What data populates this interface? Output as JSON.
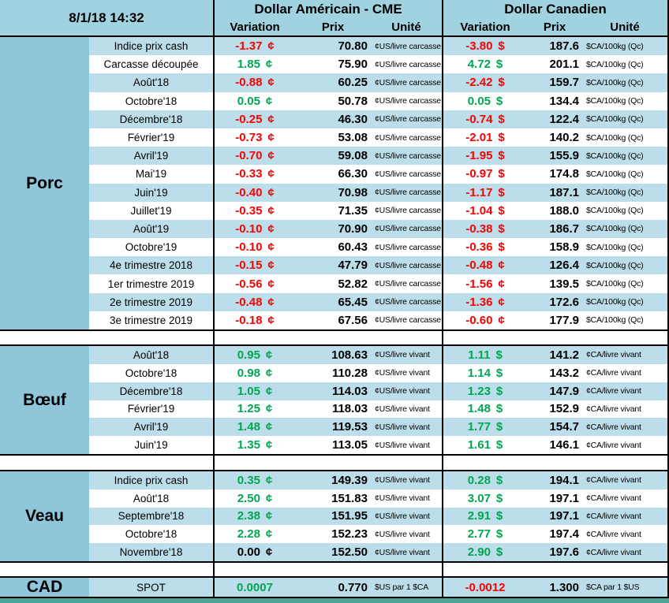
{
  "meta": {
    "timestamp": "8/1/18 14:32"
  },
  "header": {
    "us_title": "Dollar Américain - CME",
    "ca_title": "Dollar Canadien",
    "variation": "Variation",
    "prix": "Prix",
    "unite": "Unité"
  },
  "colors": {
    "positive": "#00A651",
    "negative": "#FF0000",
    "zero": "#000000",
    "header_blue": "#A0D2E0",
    "category_blue": "#8FC6DA",
    "row_blue": "#BCDEEA",
    "bottom_teal": "#4EA39A"
  },
  "sections": [
    {
      "category": "Porc",
      "us_sym": "¢",
      "ca_sym": "$",
      "us_unit": "¢US/livre carcasse",
      "ca_unit": "$CA/100kg (Qc)",
      "rows": [
        {
          "label": "Indice prix cash",
          "us_var": "-1.37",
          "us_prix": "70.80",
          "ca_var": "-3.80",
          "ca_prix": "187.6"
        },
        {
          "label": "Carcasse découpée",
          "us_var": "1.85",
          "us_prix": "75.90",
          "ca_var": "4.72",
          "ca_prix": "201.1"
        },
        {
          "label": "Août'18",
          "us_var": "-0.88",
          "us_prix": "60.25",
          "ca_var": "-2.42",
          "ca_prix": "159.7"
        },
        {
          "label": "Octobre'18",
          "us_var": "0.05",
          "us_prix": "50.78",
          "ca_var": "0.05",
          "ca_prix": "134.4"
        },
        {
          "label": "Décembre'18",
          "us_var": "-0.25",
          "us_prix": "46.30",
          "ca_var": "-0.74",
          "ca_prix": "122.4"
        },
        {
          "label": "Février'19",
          "us_var": "-0.73",
          "us_prix": "53.08",
          "ca_var": "-2.01",
          "ca_prix": "140.2"
        },
        {
          "label": "Avril'19",
          "us_var": "-0.70",
          "us_prix": "59.08",
          "ca_var": "-1.95",
          "ca_prix": "155.9"
        },
        {
          "label": "Mai'19",
          "us_var": "-0.33",
          "us_prix": "66.30",
          "ca_var": "-0.97",
          "ca_prix": "174.8"
        },
        {
          "label": "Juin'19",
          "us_var": "-0.40",
          "us_prix": "70.98",
          "ca_var": "-1.17",
          "ca_prix": "187.1"
        },
        {
          "label": "Juillet'19",
          "us_var": "-0.35",
          "us_prix": "71.35",
          "ca_var": "-1.04",
          "ca_prix": "188.0"
        },
        {
          "label": "Août'19",
          "us_var": "-0.10",
          "us_prix": "70.90",
          "ca_var": "-0.38",
          "ca_prix": "186.7"
        },
        {
          "label": "Octobre'19",
          "us_var": "-0.10",
          "us_prix": "60.43",
          "ca_var": "-0.36",
          "ca_prix": "158.9"
        },
        {
          "label": "4e trimestre 2018",
          "us_var": "-0.15",
          "us_prix": "47.79",
          "ca_var": "-0.48",
          "ca_prix": "126.4",
          "ca_sym": "¢"
        },
        {
          "label": "1er trimestre 2019",
          "us_var": "-0.56",
          "us_prix": "52.82",
          "ca_var": "-1.56",
          "ca_prix": "139.5",
          "ca_sym": "¢"
        },
        {
          "label": "2e trimestre 2019",
          "us_var": "-0.48",
          "us_prix": "65.45",
          "ca_var": "-1.36",
          "ca_prix": "172.6",
          "ca_sym": "¢"
        },
        {
          "label": "3e trimestre 2019",
          "us_var": "-0.18",
          "us_prix": "67.56",
          "ca_var": "-0.60",
          "ca_prix": "177.9",
          "ca_sym": "¢"
        }
      ]
    },
    {
      "category": "Bœuf",
      "us_sym": "¢",
      "ca_sym": "$",
      "us_unit": "¢US/livre vivant",
      "ca_unit": "¢CA/livre vivant",
      "rows": [
        {
          "label": "Août'18",
          "us_var": "0.95",
          "us_prix": "108.63",
          "ca_var": "1.11",
          "ca_prix": "141.2"
        },
        {
          "label": "Octobre'18",
          "us_var": "0.98",
          "us_prix": "110.28",
          "ca_var": "1.14",
          "ca_prix": "143.2"
        },
        {
          "label": "Décembre'18",
          "us_var": "1.05",
          "us_prix": "114.03",
          "ca_var": "1.23",
          "ca_prix": "147.9"
        },
        {
          "label": "Février'19",
          "us_var": "1.25",
          "us_prix": "118.03",
          "ca_var": "1.48",
          "ca_prix": "152.9"
        },
        {
          "label": "Avril'19",
          "us_var": "1.48",
          "us_prix": "119.53",
          "ca_var": "1.77",
          "ca_prix": "154.7"
        },
        {
          "label": "Juin'19",
          "us_var": "1.35",
          "us_prix": "113.05",
          "ca_var": "1.61",
          "ca_prix": "146.1"
        }
      ]
    },
    {
      "category": "Veau",
      "us_sym": "¢",
      "ca_sym": "$",
      "us_unit": "¢US/livre vivant",
      "ca_unit": "¢CA/livre vivant",
      "rows": [
        {
          "label": "Indice prix cash",
          "us_var": "0.35",
          "us_prix": "149.39",
          "ca_var": "0.28",
          "ca_prix": "194.1"
        },
        {
          "label": "Août'18",
          "us_var": "2.50",
          "us_prix": "151.83",
          "ca_var": "3.07",
          "ca_prix": "197.1"
        },
        {
          "label": "Septembre'18",
          "us_var": "2.38",
          "us_prix": "151.95",
          "ca_var": "2.91",
          "ca_prix": "197.1"
        },
        {
          "label": "Octobre'18",
          "us_var": "2.28",
          "us_prix": "152.23",
          "ca_var": "2.77",
          "ca_prix": "197.4"
        },
        {
          "label": "Novembre'18",
          "us_var": "0.00",
          "us_prix": "152.50",
          "ca_var": "2.90",
          "ca_prix": "197.6"
        }
      ]
    },
    {
      "category": "CAD",
      "us_sym": "",
      "ca_sym": "",
      "us_unit": "$US par 1 $CA",
      "ca_unit": "$CA par 1 $US",
      "rows": [
        {
          "label": "SPOT",
          "us_var": "0.0007",
          "us_prix": "0.770",
          "ca_var": "-0.0012",
          "ca_prix": "1.300"
        }
      ]
    }
  ]
}
